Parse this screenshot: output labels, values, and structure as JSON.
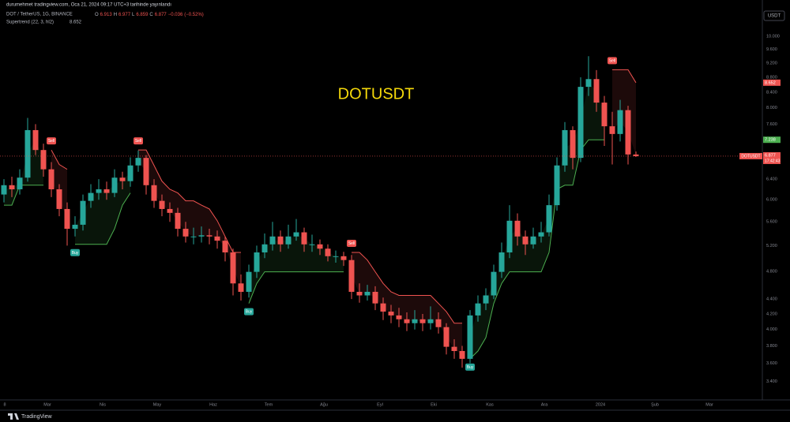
{
  "header": {
    "published": "durumehmet tradingview.com, Oca 21, 2024 09:17 UTC+3 tarihinde yayınlandı",
    "symbol_line": "DOT / TetherUS, 1G, BINANCE",
    "ohlc_labels": [
      "O",
      "H",
      "L",
      "C"
    ],
    "change": "−0.036",
    "change_pct": "(−0.52%)",
    "indicator": "Supertrend (22, 3, hl2)",
    "currency": "USDT",
    "brand": "TradingView"
  },
  "chart_data": {
    "type": "candlestick",
    "watermark": "DOTUSDT",
    "symbol_badge": "DOTUSDT",
    "countdown": "17:42:43",
    "log_scale": true,
    "grid": false,
    "up_color": "#26a69a",
    "down_color": "#ef5350",
    "xlim": [
      -0.5,
      96
    ],
    "xticks": [
      {
        "value": 0.1,
        "label": "8"
      },
      {
        "value": 5.5,
        "label": "Mar"
      },
      {
        "value": 12.5,
        "label": "Nis"
      },
      {
        "value": 19.4,
        "label": "May"
      },
      {
        "value": 26.5,
        "label": "Haz"
      },
      {
        "value": 33.5,
        "label": "Tem"
      },
      {
        "value": 40.5,
        "label": "Ağu"
      },
      {
        "value": 47.6,
        "label": "Eyl"
      },
      {
        "value": 54.4,
        "label": "Eki"
      },
      {
        "value": 61.5,
        "label": "Kas"
      },
      {
        "value": 68.4,
        "label": "Ara"
      },
      {
        "value": 75.5,
        "label": "2024"
      },
      {
        "value": 82.4,
        "label": "Şub"
      },
      {
        "value": 89.3,
        "label": "Mar"
      }
    ],
    "ylim": [
      3.21,
      10.85
    ],
    "yticks": [
      {
        "value": 10,
        "label": "10.000"
      },
      {
        "value": 9.6,
        "label": "9.600"
      },
      {
        "value": 9.2,
        "label": "9.200"
      },
      {
        "value": 8.8,
        "label": "8.800"
      },
      {
        "value": 8.4,
        "label": "8.400"
      },
      {
        "value": 8,
        "label": "8.000"
      },
      {
        "value": 7.6,
        "label": "7.600"
      },
      {
        "value": 7.2,
        "label": "7.200"
      },
      {
        "value": 6.8,
        "label": "6.800"
      },
      {
        "value": 6.4,
        "label": "6.400"
      },
      {
        "value": 6,
        "label": "6.000"
      },
      {
        "value": 5.6,
        "label": "5.600"
      },
      {
        "value": 5.2,
        "label": "5.200"
      },
      {
        "value": 4.8,
        "label": "4.800"
      },
      {
        "value": 4.4,
        "label": "4.400"
      },
      {
        "value": 4.2,
        "label": "4.200"
      },
      {
        "value": 4,
        "label": "4.000"
      },
      {
        "value": 3.8,
        "label": "3.800"
      },
      {
        "value": 3.6,
        "label": "3.600"
      },
      {
        "value": 3.4,
        "label": "3.400"
      }
    ],
    "candles": [
      [
        6.1,
        6.4,
        5.95,
        6.28
      ],
      [
        6.28,
        6.45,
        6.05,
        6.2
      ],
      [
        6.2,
        6.6,
        6.1,
        6.43
      ],
      [
        6.43,
        7.75,
        6.35,
        7.46
      ],
      [
        7.46,
        7.6,
        6.9,
        7.01
      ],
      [
        7.01,
        7.15,
        6.45,
        6.6
      ],
      [
        6.6,
        6.75,
        6.05,
        6.2
      ],
      [
        6.2,
        6.3,
        5.7,
        5.83
      ],
      [
        5.83,
        5.95,
        5.2,
        5.48
      ],
      [
        5.48,
        5.7,
        5.35,
        5.55
      ],
      [
        5.55,
        6.1,
        5.45,
        5.98
      ],
      [
        5.98,
        6.3,
        5.85,
        6.13
      ],
      [
        6.13,
        6.4,
        6.0,
        6.2
      ],
      [
        6.2,
        6.35,
        6.0,
        6.13
      ],
      [
        6.13,
        6.6,
        6.05,
        6.43
      ],
      [
        6.43,
        6.55,
        6.2,
        6.36
      ],
      [
        6.36,
        6.85,
        6.25,
        6.68
      ],
      [
        6.68,
        7.0,
        6.55,
        6.84
      ],
      [
        6.84,
        6.9,
        6.1,
        6.28
      ],
      [
        6.28,
        6.4,
        5.85,
        5.98
      ],
      [
        5.98,
        6.1,
        5.7,
        5.83
      ],
      [
        5.83,
        5.95,
        5.6,
        5.76
      ],
      [
        5.76,
        5.85,
        5.35,
        5.48
      ],
      [
        5.48,
        5.6,
        5.25,
        5.35
      ],
      [
        5.35,
        5.5,
        5.22,
        5.35
      ],
      [
        5.35,
        5.52,
        5.25,
        5.37
      ],
      [
        5.37,
        5.48,
        5.22,
        5.35
      ],
      [
        5.35,
        5.45,
        5.15,
        5.28
      ],
      [
        5.28,
        5.35,
        4.95,
        5.09
      ],
      [
        5.09,
        5.15,
        4.45,
        4.62
      ],
      [
        4.62,
        4.75,
        4.38,
        4.5
      ],
      [
        4.5,
        4.9,
        4.42,
        4.79
      ],
      [
        4.79,
        5.2,
        4.7,
        5.09
      ],
      [
        5.09,
        5.4,
        5.0,
        5.22
      ],
      [
        5.22,
        5.6,
        5.12,
        5.35
      ],
      [
        5.35,
        5.45,
        5.1,
        5.22
      ],
      [
        5.22,
        5.55,
        5.15,
        5.35
      ],
      [
        5.35,
        5.65,
        5.28,
        5.42
      ],
      [
        5.42,
        5.5,
        5.1,
        5.22
      ],
      [
        5.22,
        5.38,
        5.1,
        5.22
      ],
      [
        5.22,
        5.3,
        5.05,
        5.15
      ],
      [
        5.15,
        5.22,
        4.95,
        5.03
      ],
      [
        5.03,
        5.12,
        4.93,
        5.03
      ],
      [
        5.03,
        5.1,
        4.88,
        4.97
      ],
      [
        4.97,
        5.05,
        4.4,
        4.5
      ],
      [
        4.5,
        4.62,
        4.35,
        4.45
      ],
      [
        4.45,
        4.6,
        4.38,
        4.5
      ],
      [
        4.5,
        4.58,
        4.25,
        4.34
      ],
      [
        4.34,
        4.42,
        4.12,
        4.23
      ],
      [
        4.23,
        4.32,
        4.08,
        4.18
      ],
      [
        4.18,
        4.28,
        4.03,
        4.13
      ],
      [
        4.13,
        4.22,
        3.98,
        4.08
      ],
      [
        4.08,
        4.25,
        4.0,
        4.13
      ],
      [
        4.13,
        4.2,
        3.98,
        4.08
      ],
      [
        4.08,
        4.3,
        4.0,
        4.13
      ],
      [
        4.13,
        4.22,
        3.95,
        4.03
      ],
      [
        4.03,
        4.08,
        3.7,
        3.79
      ],
      [
        3.79,
        3.88,
        3.65,
        3.74
      ],
      [
        3.74,
        3.8,
        3.55,
        3.65
      ],
      [
        3.65,
        4.25,
        3.6,
        4.18
      ],
      [
        4.18,
        4.45,
        4.1,
        4.34
      ],
      [
        4.34,
        4.55,
        4.25,
        4.45
      ],
      [
        4.45,
        4.9,
        4.4,
        4.79
      ],
      [
        4.79,
        5.25,
        4.7,
        5.09
      ],
      [
        5.09,
        5.9,
        5.0,
        5.62
      ],
      [
        5.62,
        5.75,
        5.2,
        5.35
      ],
      [
        5.35,
        5.45,
        5.05,
        5.22
      ],
      [
        5.22,
        5.5,
        5.15,
        5.35
      ],
      [
        5.35,
        5.6,
        5.25,
        5.42
      ],
      [
        5.42,
        6.1,
        5.35,
        5.9
      ],
      [
        5.9,
        6.85,
        5.8,
        6.68
      ],
      [
        6.68,
        7.65,
        6.55,
        7.46
      ],
      [
        7.46,
        7.55,
        6.6,
        6.84
      ],
      [
        6.84,
        8.8,
        6.75,
        8.54
      ],
      [
        8.54,
        9.4,
        8.3,
        8.75
      ],
      [
        8.75,
        9.0,
        7.9,
        8.13
      ],
      [
        8.13,
        8.3,
        7.1,
        7.55
      ],
      [
        7.55,
        7.9,
        6.7,
        7.37
      ],
      [
        7.37,
        8.2,
        7.2,
        7.94
      ],
      [
        7.94,
        8.05,
        6.7,
        6.913
      ],
      [
        6.913,
        6.977,
        6.859,
        6.877
      ]
    ],
    "supertrend_up": {
      "color": "#4caf50",
      "values": [
        5.9,
        5.9,
        6.28,
        6.28,
        6.28,
        6.28,
        null,
        null,
        null,
        5.22,
        5.22,
        5.22,
        5.22,
        5.22,
        5.48,
        5.9,
        6.13,
        null,
        null,
        null,
        null,
        null,
        null,
        null,
        null,
        null,
        null,
        null,
        null,
        null,
        null,
        4.34,
        4.62,
        4.79,
        4.79,
        4.79,
        4.79,
        4.79,
        4.79,
        4.79,
        4.79,
        4.79,
        4.79,
        4.79,
        null,
        null,
        null,
        null,
        null,
        null,
        null,
        null,
        null,
        null,
        null,
        null,
        null,
        null,
        null,
        3.65,
        3.74,
        3.9,
        4.34,
        4.62,
        4.79,
        4.79,
        4.79,
        4.79,
        4.79,
        5.09,
        6.2,
        6.28,
        6.28,
        7.01,
        7.238,
        7.238,
        7.238,
        null,
        null,
        null,
        null
      ]
    },
    "supertrend_down": {
      "color": "#ef5350",
      "values": [
        null,
        null,
        null,
        null,
        null,
        null,
        7.01,
        6.7,
        6.6,
        null,
        null,
        null,
        null,
        null,
        null,
        null,
        null,
        7.01,
        7.01,
        6.68,
        6.36,
        6.2,
        6.13,
        5.98,
        5.98,
        5.9,
        5.83,
        5.62,
        5.35,
        5.09,
        5.09,
        null,
        null,
        null,
        null,
        null,
        null,
        null,
        null,
        null,
        null,
        null,
        null,
        null,
        5.09,
        5.09,
        4.97,
        4.79,
        4.62,
        4.5,
        4.45,
        4.45,
        4.45,
        4.45,
        4.45,
        4.34,
        4.23,
        4.08,
        4.08,
        null,
        null,
        null,
        null,
        null,
        null,
        null,
        null,
        null,
        null,
        null,
        null,
        null,
        null,
        null,
        null,
        null,
        null,
        9.01,
        9.01,
        9.01,
        8.652
      ]
    },
    "signals": [
      {
        "label": "Sell",
        "candle": 6
      },
      {
        "label": "Buy",
        "candle": 9
      },
      {
        "label": "Sell",
        "candle": 17
      },
      {
        "label": "Buy",
        "candle": 31
      },
      {
        "label": "Sell",
        "candle": 44
      },
      {
        "label": "Buy",
        "candle": 59
      },
      {
        "label": "Sell",
        "candle": 77
      }
    ]
  }
}
